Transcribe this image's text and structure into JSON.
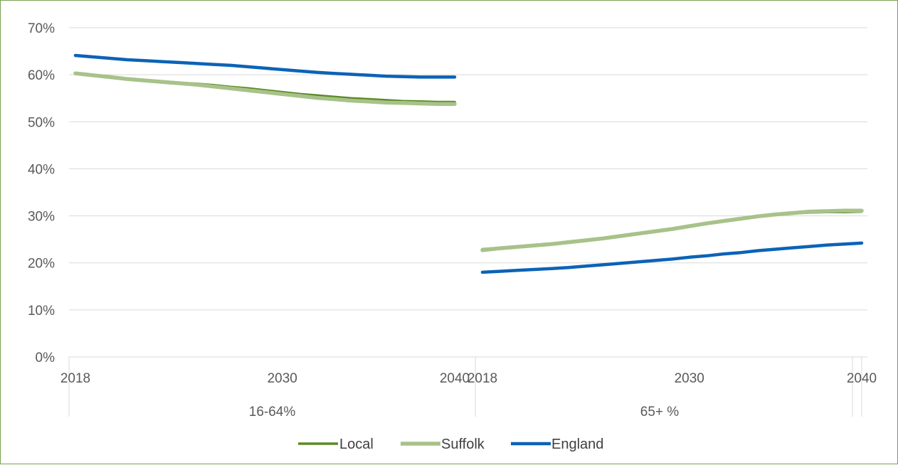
{
  "chart_data": {
    "type": "line",
    "title": "",
    "xlabel": "",
    "ylabel": "",
    "ylim": [
      0,
      0.7
    ],
    "y_ticks": [
      0,
      0.1,
      0.2,
      0.3,
      0.4,
      0.5,
      0.6,
      0.7
    ],
    "y_tick_labels": [
      "0%",
      "10%",
      "20%",
      "30%",
      "40%",
      "50%",
      "60%",
      "70%"
    ],
    "grid": true,
    "legend_position": "bottom-center",
    "groups": [
      {
        "label": "16-64%",
        "x": [
          2018,
          2019,
          2020,
          2021,
          2022,
          2023,
          2024,
          2025,
          2026,
          2027,
          2028,
          2029,
          2030,
          2031,
          2032,
          2033,
          2034,
          2035,
          2036,
          2037,
          2038,
          2039,
          2040
        ],
        "tick_labels": [
          "2018",
          "2030",
          "2040"
        ]
      },
      {
        "label": "65+ %",
        "x": [
          2018,
          2019,
          2020,
          2021,
          2022,
          2023,
          2024,
          2025,
          2026,
          2027,
          2028,
          2029,
          2030,
          2031,
          2032,
          2033,
          2034,
          2035,
          2036,
          2037,
          2038,
          2039,
          2040
        ],
        "tick_labels": [
          "2018",
          "2030",
          "2040"
        ]
      }
    ],
    "series": [
      {
        "name": "Local",
        "color": "#5a8a23",
        "width": 3.5,
        "values": [
          [
            0.602,
            0.598,
            0.594,
            0.591,
            0.589,
            0.586,
            0.583,
            0.581,
            0.578,
            0.574,
            0.571,
            0.567,
            0.563,
            0.559,
            0.556,
            0.553,
            0.55,
            0.548,
            0.546,
            0.544,
            0.543,
            0.542,
            0.542
          ],
          [
            0.229,
            0.232,
            0.235,
            0.238,
            0.241,
            0.244,
            0.248,
            0.252,
            0.256,
            0.261,
            0.266,
            0.271,
            0.277,
            0.283,
            0.288,
            0.293,
            0.298,
            0.302,
            0.305,
            0.307,
            0.308,
            0.308,
            0.309
          ]
        ]
      },
      {
        "name": "Suffolk",
        "color": "#a8c28a",
        "width": 5.5,
        "values": [
          [
            0.603,
            0.599,
            0.595,
            0.591,
            0.588,
            0.585,
            0.582,
            0.579,
            0.575,
            0.571,
            0.567,
            0.563,
            0.559,
            0.555,
            0.551,
            0.548,
            0.545,
            0.543,
            0.541,
            0.54,
            0.539,
            0.538,
            0.538
          ],
          [
            0.227,
            0.231,
            0.234,
            0.237,
            0.24,
            0.244,
            0.248,
            0.252,
            0.257,
            0.262,
            0.267,
            0.272,
            0.278,
            0.284,
            0.289,
            0.294,
            0.299,
            0.303,
            0.306,
            0.309,
            0.31,
            0.311,
            0.311
          ]
        ]
      },
      {
        "name": "England",
        "color": "#0b63b6",
        "width": 4.5,
        "values": [
          [
            0.641,
            0.638,
            0.635,
            0.632,
            0.63,
            0.628,
            0.626,
            0.624,
            0.622,
            0.62,
            0.617,
            0.614,
            0.611,
            0.608,
            0.605,
            0.603,
            0.601,
            0.599,
            0.597,
            0.596,
            0.595,
            0.595,
            0.595
          ],
          [
            0.18,
            0.182,
            0.184,
            0.186,
            0.188,
            0.19,
            0.193,
            0.196,
            0.199,
            0.202,
            0.205,
            0.208,
            0.212,
            0.215,
            0.219,
            0.222,
            0.226,
            0.229,
            0.232,
            0.235,
            0.238,
            0.24,
            0.242
          ]
        ]
      }
    ]
  }
}
